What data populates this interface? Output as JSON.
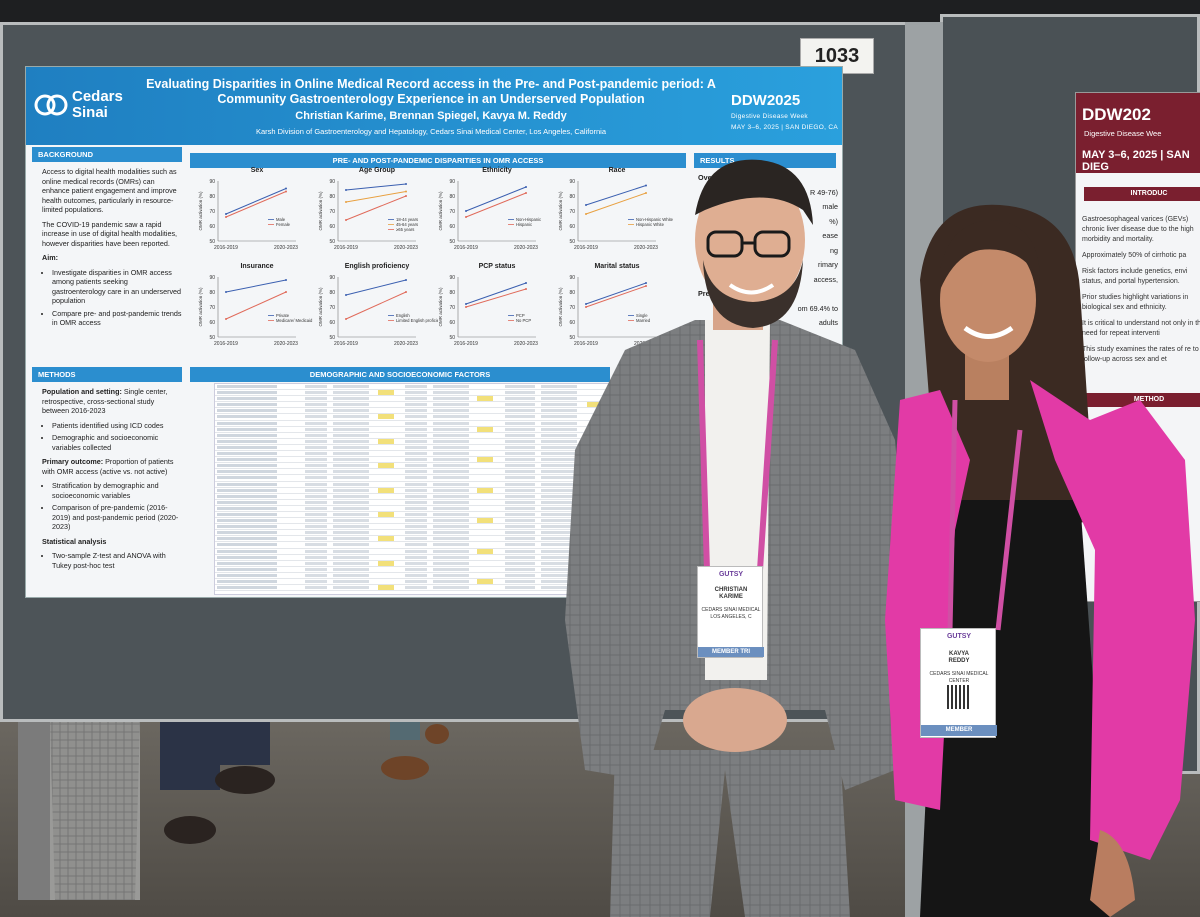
{
  "booth_number": "1033",
  "poster": {
    "logo_text": "Cedars\nSinai",
    "title": "Evaluating Disparities in Online Medical Record access in the Pre- and Post-pandemic period: A Community Gastroenterology Experience in an Underserved Population",
    "authors": "Christian Karime, Brennan Spiegel, Kavya M. Reddy",
    "affiliation": "Karsh Division of Gastroenterology and Hepatology, Cedars Sinai Medical Center, Los Angeles, California",
    "conference_logo": "DDW2025",
    "conference_sub": "Digestive Disease Week",
    "conference_date": "MAY 3–6, 2025 | SAN DIEGO, CA",
    "background": {
      "heading": "BACKGROUND",
      "p1": "Access to digital health modalities such as online medical records (OMRs) can enhance patient engagement and improve health outcomes, particularly in resource-limited populations.",
      "p2": "The COVID-19 pandemic saw a rapid increase in use of digital health modalities, however disparities have been reported.",
      "aim_label": "Aim:",
      "aim1": "Investigate disparities in OMR access among patients seeking gastroenterology care in an underserved population",
      "aim2": "Compare pre- and post-pandemic trends in OMR access"
    },
    "methods": {
      "heading": "METHODS",
      "setting_label": "Population and setting:",
      "setting": "Single center, retrospective, cross-sectional study between 2016-2023",
      "b1": "Patients identified using ICD codes",
      "b2": "Demographic and socioeconomic variables collected",
      "outcome_label": "Primary outcome:",
      "outcome": "Proportion of patients with OMR access (active vs. not active)",
      "b3": "Stratification by demographic and socioeconomic variables",
      "b4": "Comparison of pre-pandemic (2016-2019) and post-pandemic period (2020-2023)",
      "stats_label": "Statistical analysis",
      "b5": "Two-sample Z-test and ANOVA with Tukey post-hoc test"
    },
    "charts_heading": "PRE- AND POST-PANDEMIC DISPARITIES IN OMR ACCESS",
    "table_heading": "DEMOGRAPHIC AND SOCIOECONOMIC FACTORS",
    "results_heading": "RESULTS",
    "results_fragments": [
      "Ove",
      "R 49-76)",
      "male",
      "%)",
      "ease",
      "ng",
      "rimary",
      "access,",
      "Pre",
      "om 69.4% to",
      "adults"
    ],
    "y_axis_label": "OMR activation (%)",
    "x_ticks": [
      "2016-2019",
      "2020-2023"
    ],
    "y_ticks": [
      "90",
      "80",
      "70",
      "60",
      "50"
    ]
  },
  "chart_data": [
    {
      "type": "line",
      "title": "Sex",
      "x": [
        "2016-2019",
        "2020-2023"
      ],
      "ylim": [
        50,
        90
      ],
      "ylabel": "OMR activation (%)",
      "series": [
        {
          "name": "Male",
          "values": [
            68,
            85
          ]
        },
        {
          "name": "Female",
          "values": [
            66,
            83
          ]
        }
      ],
      "colors": [
        "#3a5fb0",
        "#e06a5a"
      ]
    },
    {
      "type": "line",
      "title": "Age Group",
      "x": [
        "2016-2019",
        "2020-2023"
      ],
      "ylim": [
        50,
        90
      ],
      "ylabel": "OMR activation (%)",
      "series": [
        {
          "name": "18-44 years",
          "values": [
            84,
            88
          ]
        },
        {
          "name": "45-64 years",
          "values": [
            76,
            83
          ]
        },
        {
          "name": "≥65 years",
          "values": [
            64,
            80
          ]
        }
      ],
      "colors": [
        "#3a5fb0",
        "#e8a040",
        "#e06a5a"
      ]
    },
    {
      "type": "line",
      "title": "Ethnicity",
      "x": [
        "2016-2019",
        "2020-2023"
      ],
      "ylim": [
        50,
        90
      ],
      "ylabel": "OMR activation (%)",
      "series": [
        {
          "name": "Non-Hispanic",
          "values": [
            70,
            86
          ]
        },
        {
          "name": "Hispanic",
          "values": [
            66,
            82
          ]
        }
      ],
      "colors": [
        "#3a5fb0",
        "#e06a5a"
      ]
    },
    {
      "type": "line",
      "title": "Race",
      "x": [
        "2016-2019",
        "2020-2023"
      ],
      "ylim": [
        50,
        90
      ],
      "ylabel": "OMR activation (%)",
      "series": [
        {
          "name": "Non-Hispanic White",
          "values": [
            74,
            87
          ]
        },
        {
          "name": "Hispanic White",
          "values": [
            68,
            82
          ]
        }
      ],
      "colors": [
        "#3a5fb0",
        "#e8a040"
      ]
    },
    {
      "type": "line",
      "title": "Insurance",
      "x": [
        "2016-2019",
        "2020-2023"
      ],
      "ylim": [
        50,
        90
      ],
      "ylabel": "OMR activation (%)",
      "series": [
        {
          "name": "Private",
          "values": [
            80,
            88
          ]
        },
        {
          "name": "Medicare/ Medicaid",
          "values": [
            62,
            80
          ]
        }
      ],
      "colors": [
        "#3a5fb0",
        "#e06a5a"
      ]
    },
    {
      "type": "line",
      "title": "English proficiency",
      "x": [
        "2016-2019",
        "2020-2023"
      ],
      "ylim": [
        50,
        90
      ],
      "ylabel": "OMR activation (%)",
      "series": [
        {
          "name": "English",
          "values": [
            78,
            88
          ]
        },
        {
          "name": "Limited English proficiency",
          "values": [
            62,
            80
          ]
        }
      ],
      "colors": [
        "#3a5fb0",
        "#e06a5a"
      ]
    },
    {
      "type": "line",
      "title": "PCP status",
      "x": [
        "2016-2019",
        "2020-2023"
      ],
      "ylim": [
        50,
        90
      ],
      "ylabel": "OMR activation (%)",
      "series": [
        {
          "name": "PCP",
          "values": [
            72,
            86
          ]
        },
        {
          "name": "No PCP",
          "values": [
            70,
            82
          ]
        }
      ],
      "colors": [
        "#3a5fb0",
        "#e06a5a"
      ]
    },
    {
      "type": "line",
      "title": "Marital status",
      "x": [
        "2016-2019",
        "2020-2023"
      ],
      "ylim": [
        50,
        90
      ],
      "ylabel": "OMR activation (%)",
      "series": [
        {
          "name": "Single",
          "values": [
            72,
            86
          ]
        },
        {
          "name": "Married",
          "values": [
            70,
            84
          ]
        }
      ],
      "colors": [
        "#3a5fb0",
        "#e06a5a"
      ]
    }
  ],
  "poster2": {
    "logo": "DDW202",
    "sub": "Digestive Disease Wee",
    "date": "MAY 3–6, 2025 | SAN DIEG",
    "intro_heading": "INTRODUC",
    "p1": "Gastroesophageal varices (GEVs) chronic liver disease due to the high morbidity and mortality.",
    "p2": "Approximately 50% of cirrhotic pa",
    "p3": "Risk factors include genetics, envi status, and portal hypertension.",
    "p4": "Prior studies highlight variations in biological sex and ethnicity.",
    "p5": "It is critical to understand not only in the need for repeat interventi",
    "p6": "This study examines the rates of re to follow-up across sex and et",
    "methods_heading": "METHOD"
  },
  "badges": {
    "left_brand": "GUTSY",
    "left_name": "CHRISTIAN\nKARIME",
    "left_org": "CEDARS SINAI MEDICAL\nLOS ANGELES, C",
    "left_type": "MEMBER TRI",
    "right_brand": "GUTSY",
    "right_name": "KAVYA\nREDDY",
    "right_org": "CEDARS SINAI MEDICAL CENTER",
    "right_type": "MEMBER"
  }
}
